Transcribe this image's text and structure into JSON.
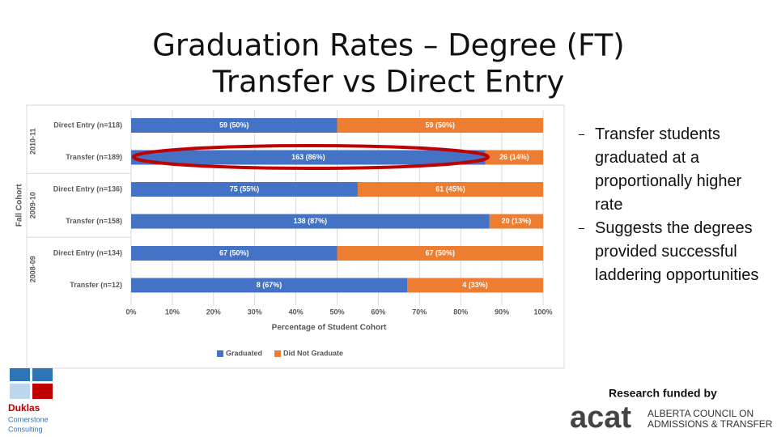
{
  "slide": {
    "title_lines": [
      "Graduation Rates – Degree (FT)",
      "Transfer vs Direct Entry"
    ],
    "bullets": [
      "Transfer students graduated at a proportionally higher rate",
      "Suggests the degrees provided successful laddering opportunities"
    ],
    "funding": "Research funded by",
    "duklas": [
      "Duklas",
      "Cornerstone",
      "Consulting"
    ],
    "acat": [
      "acat",
      "ALBERTA COUNCIL ON",
      "ADMISSIONS & TRANSFER"
    ]
  },
  "chart_data": {
    "type": "stacked-bar-horizontal",
    "categories": [
      "Direct Entry (n=118)",
      "Transfer (n=189)",
      "Direct Entry (n=136)",
      "Transfer (n=158)",
      "Direct Entry (n=134)",
      "Transfer (n=12)"
    ],
    "groups": [
      "2010-11",
      "2009-10",
      "2008-09"
    ],
    "y_label": "Fall Cohort",
    "x_label": "Percentage of Student Cohort",
    "series": [
      {
        "name": "Graduated",
        "color": "#4472c4",
        "values": [
          50,
          86,
          55,
          87,
          50,
          67
        ],
        "value_labels": [
          "59 (50%)",
          "163 (86%)",
          "75 (55%)",
          "138 (87%)",
          "67 (50%)",
          "8 (67%)"
        ]
      },
      {
        "name": "Did Not Graduate",
        "color": "#ed7d31",
        "values": [
          50,
          14,
          45,
          13,
          50,
          33
        ],
        "value_labels": [
          "59 (50%)",
          "26 (14%)",
          "61 (45%)",
          "20 (13%)",
          "67 (50%)",
          "4 (33%)"
        ]
      }
    ],
    "xlim": [
      0,
      100
    ],
    "xticks": [
      {
        "value": 0,
        "label": "0%"
      },
      {
        "value": 10,
        "label": "10%"
      },
      {
        "value": 20,
        "label": "20%"
      },
      {
        "value": 30,
        "label": "30%"
      },
      {
        "value": 40,
        "label": "40%"
      },
      {
        "value": 50,
        "label": "50%"
      },
      {
        "value": 60,
        "label": "60%"
      },
      {
        "value": 70,
        "label": "70%"
      },
      {
        "value": 80,
        "label": "80%"
      },
      {
        "value": 90,
        "label": "90%"
      },
      {
        "value": 100,
        "label": "100%"
      }
    ],
    "grid": true,
    "legend": "bottom"
  }
}
